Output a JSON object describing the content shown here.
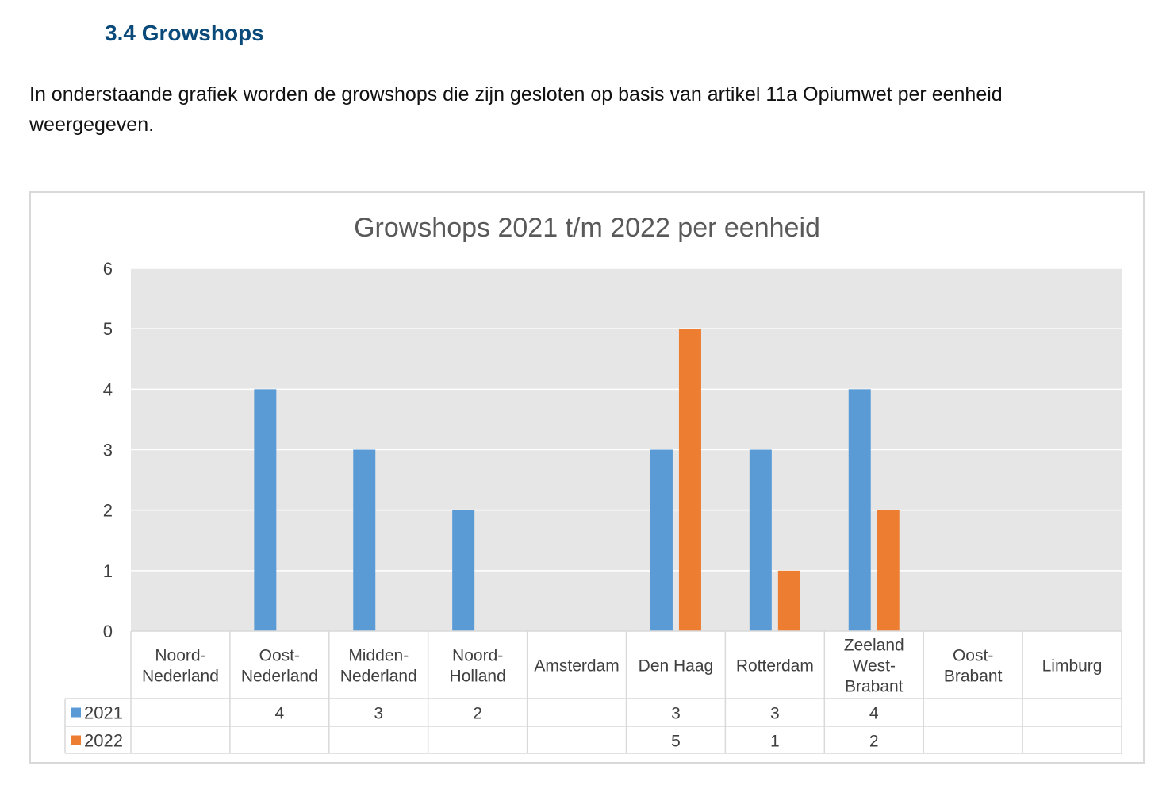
{
  "section": {
    "heading": "3.4 Growshops",
    "intro": "In onderstaande grafiek worden de growshops die zijn gesloten op basis van artikel 11a Opiumwet per eenheid weergegeven."
  },
  "colors": {
    "series_2021": "#5b9bd5",
    "series_2022": "#ed7d31",
    "plot_bg": "#e7e6e6",
    "gridline": "#ffffff",
    "heading": "#0a4a7a"
  },
  "chart_data": {
    "type": "bar",
    "title": "Growshops 2021 t/m 2022 per eenheid",
    "categories": [
      [
        "Noord-",
        "Nederland"
      ],
      [
        "Oost-",
        "Nederland"
      ],
      [
        "Midden-",
        "Nederland"
      ],
      [
        "Noord-",
        "Holland"
      ],
      [
        "Amsterdam"
      ],
      [
        "Den Haag"
      ],
      [
        "Rotterdam"
      ],
      [
        "Zeeland",
        "West-",
        "Brabant"
      ],
      [
        "Oost-",
        "Brabant"
      ],
      [
        "Limburg"
      ]
    ],
    "series": [
      {
        "name": "2021",
        "values": [
          null,
          4,
          3,
          2,
          null,
          3,
          3,
          4,
          null,
          null
        ]
      },
      {
        "name": "2022",
        "values": [
          null,
          null,
          null,
          null,
          null,
          5,
          1,
          2,
          null,
          null
        ]
      }
    ],
    "ylim": [
      0,
      6
    ],
    "yticks": [
      0,
      1,
      2,
      3,
      4,
      5,
      6
    ],
    "xlabel": "",
    "ylabel": "",
    "grid": true,
    "legend": "data-table"
  }
}
